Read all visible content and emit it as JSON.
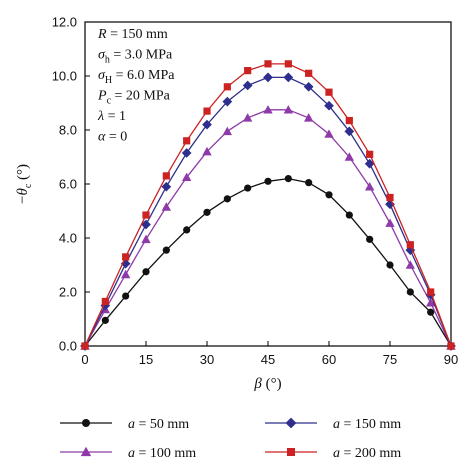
{
  "chart_data": {
    "type": "line",
    "x": [
      0,
      5,
      10,
      15,
      20,
      25,
      30,
      35,
      40,
      45,
      50,
      55,
      60,
      65,
      70,
      75,
      80,
      85,
      90
    ],
    "xlim": [
      0,
      90
    ],
    "ylim": [
      0,
      12
    ],
    "x_ticks": [
      "0",
      "15",
      "30",
      "45",
      "60",
      "75",
      "90"
    ],
    "y_ticks": [
      "0.0",
      "2.0",
      "4.0",
      "6.0",
      "8.0",
      "10.0",
      "12.0"
    ],
    "xlabel": {
      "symbol": "β",
      "unit": " (°)"
    },
    "ylabel": {
      "prefix": "−",
      "symbol": "θ",
      "sub": "c",
      "unit": " (°)"
    },
    "grid": false,
    "legend_placement": "bottom",
    "annotations": [
      {
        "sym": "R",
        "sub": "",
        "rest": " = 150 mm"
      },
      {
        "sym": "σ",
        "sub": "h",
        "rest": " = 3.0 MPa"
      },
      {
        "sym": "σ",
        "sub": "H",
        "rest": " = 6.0 MPa"
      },
      {
        "sym": "P",
        "sub": "c",
        "rest": " = 20 MPa"
      },
      {
        "sym": "λ",
        "sub": "",
        "rest": " = 1"
      },
      {
        "sym": "α",
        "sub": "",
        "rest": " = 0"
      }
    ],
    "series": [
      {
        "name": "a = 50 mm",
        "sym": "a",
        "rest": " = 50 mm",
        "color": "#111111",
        "marker": "circle",
        "values": [
          0,
          0.95,
          1.85,
          2.75,
          3.55,
          4.3,
          4.95,
          5.45,
          5.85,
          6.1,
          6.2,
          6.05,
          5.6,
          4.85,
          3.95,
          3.0,
          2.0,
          1.25,
          0
        ]
      },
      {
        "name": "a = 100 mm",
        "sym": "a",
        "rest": " = 100 mm",
        "color": "#8e3aa8",
        "marker": "triangle",
        "values": [
          0,
          1.35,
          2.65,
          3.95,
          5.15,
          6.25,
          7.2,
          7.95,
          8.45,
          8.75,
          8.75,
          8.45,
          7.85,
          7.0,
          5.9,
          4.55,
          3.0,
          1.6,
          0
        ]
      },
      {
        "name": "a = 150 mm",
        "sym": "a",
        "rest": " = 150 mm",
        "color": "#2e2f8c",
        "marker": "diamond",
        "values": [
          0,
          1.5,
          3.05,
          4.5,
          5.9,
          7.15,
          8.2,
          9.05,
          9.65,
          9.95,
          9.95,
          9.6,
          8.9,
          7.95,
          6.75,
          5.25,
          3.55,
          1.9,
          0
        ]
      },
      {
        "name": "a = 200 mm",
        "sym": "a",
        "rest": " = 200 mm",
        "color": "#cc2222",
        "marker": "square",
        "values": [
          0,
          1.65,
          3.3,
          4.85,
          6.3,
          7.6,
          8.7,
          9.6,
          10.2,
          10.45,
          10.45,
          10.1,
          9.4,
          8.35,
          7.1,
          5.5,
          3.75,
          2.0,
          0
        ]
      }
    ]
  }
}
